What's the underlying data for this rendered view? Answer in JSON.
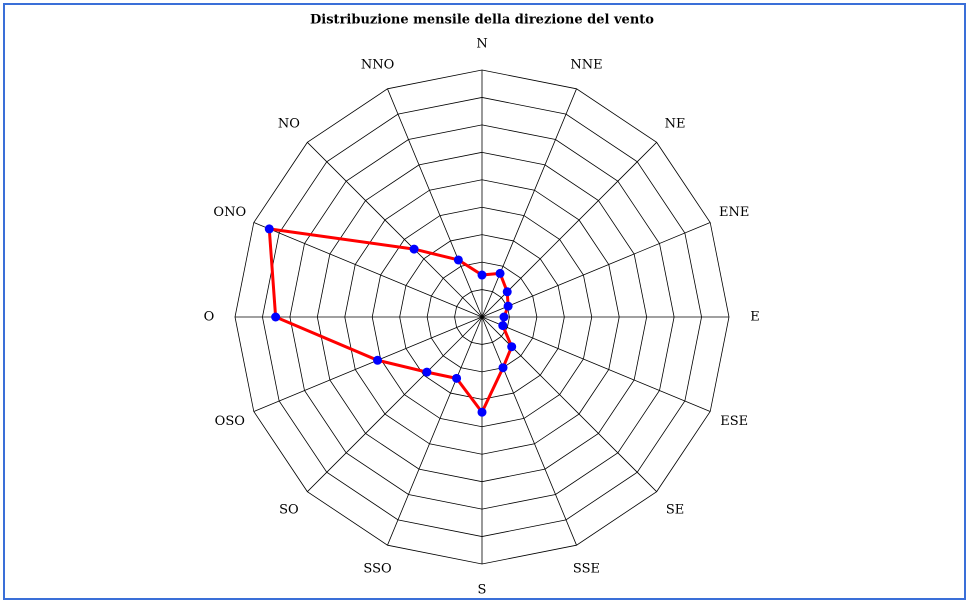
{
  "chart_data": {
    "type": "radar",
    "title": "Distribuzione mensile della direzione del vento",
    "categories": [
      "N",
      "NNE",
      "NE",
      "ENE",
      "E",
      "ESE",
      "SE",
      "SSE",
      "S",
      "SSO",
      "SO",
      "OSO",
      "O",
      "ONO",
      "NO",
      "NNO"
    ],
    "values": [
      1.53,
      1.72,
      1.3,
      1.03,
      0.8,
      0.82,
      1.53,
      2.0,
      3.47,
      2.42,
      2.84,
      4.12,
      7.52,
      8.39,
      3.5,
      2.25
    ],
    "color": "#ff0000",
    "marker_color": "#0000ff",
    "rlim": [
      0,
      9
    ],
    "rticks": [
      1,
      2,
      3,
      4,
      5,
      6,
      7,
      8,
      9
    ],
    "grid": true
  }
}
